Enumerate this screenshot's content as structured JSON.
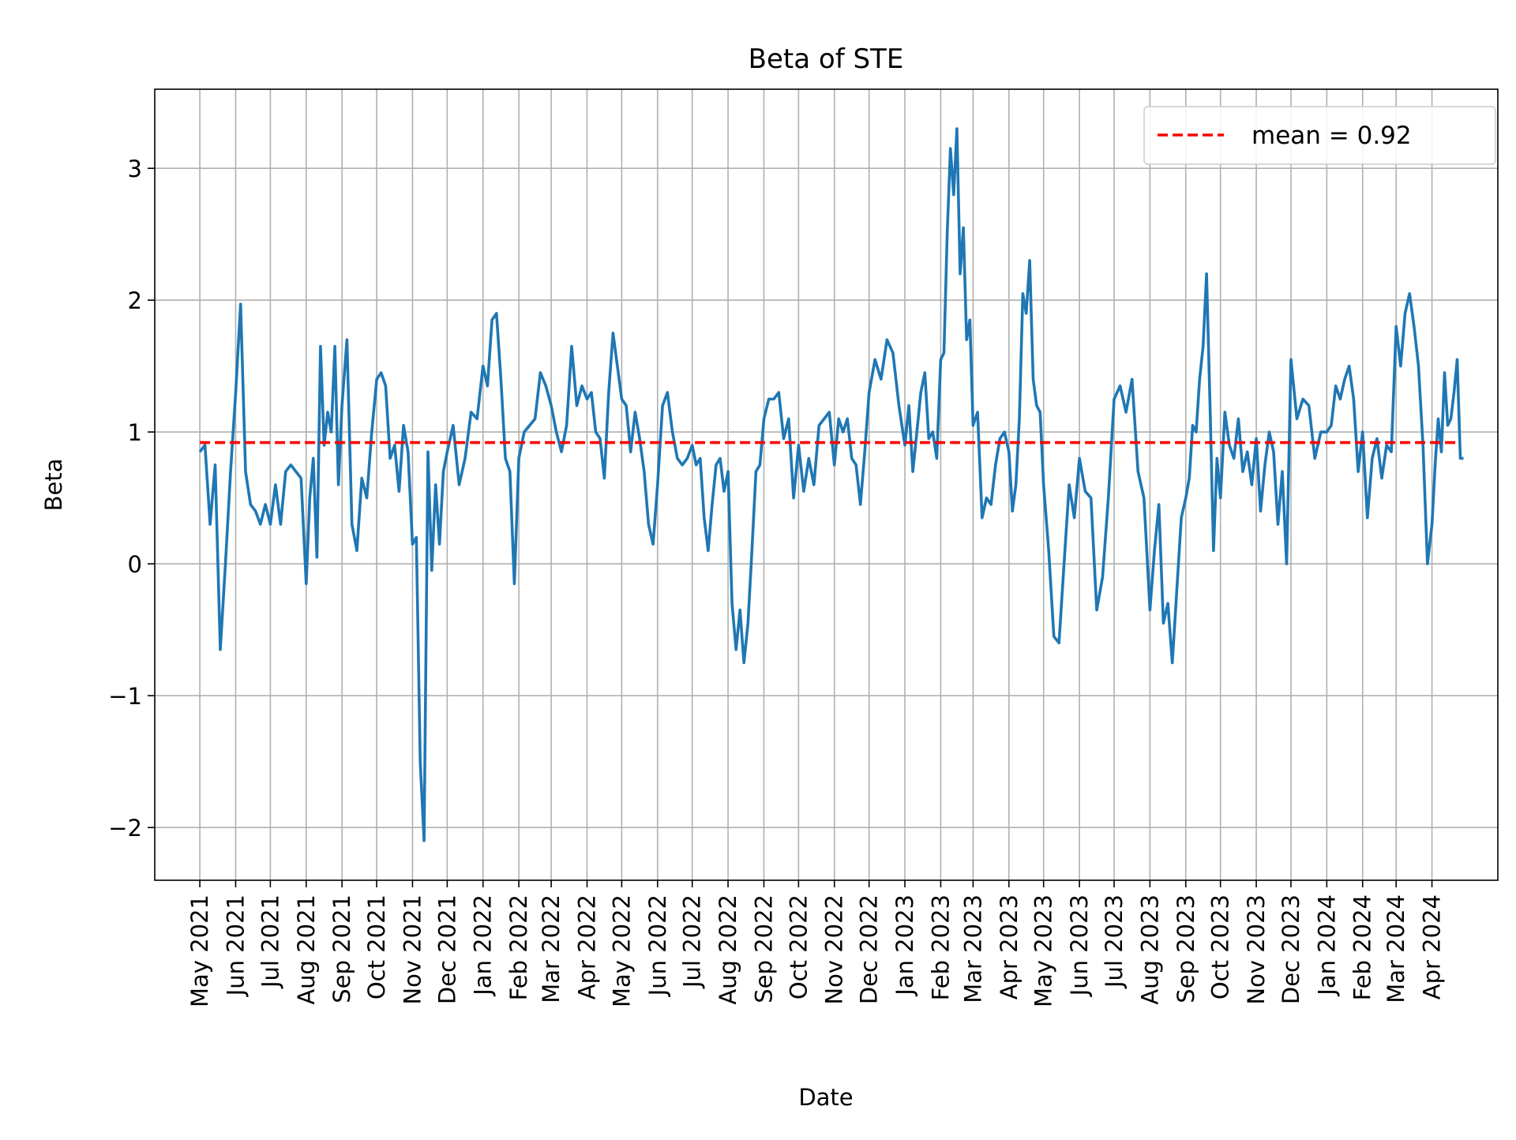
{
  "chart_data": {
    "type": "line",
    "title": "Beta of STE",
    "xlabel": "Date",
    "ylabel": "Beta",
    "ylim": [
      -2.4,
      3.6
    ],
    "yticks": [
      -2,
      -1,
      0,
      1,
      2,
      3
    ],
    "ytick_labels": [
      "−2",
      "−1",
      "0",
      "1",
      "2",
      "3"
    ],
    "xlim": [
      "2021-03-23",
      "2024-05-28"
    ],
    "grid": true,
    "legend_position": "top-right",
    "xtick_labels": [
      "May 2021",
      "Jun 2021",
      "Jul 2021",
      "Aug 2021",
      "Sep 2021",
      "Oct 2021",
      "Nov 2021",
      "Dec 2021",
      "Jan 2022",
      "Feb 2022",
      "Mar 2022",
      "Apr 2022",
      "May 2022",
      "Jun 2022",
      "Jul 2022",
      "Aug 2022",
      "Sep 2022",
      "Oct 2022",
      "Nov 2022",
      "Dec 2022",
      "Jan 2023",
      "Feb 2023",
      "Mar 2023",
      "Apr 2023",
      "May 2023",
      "Jun 2023",
      "Jul 2023",
      "Aug 2023",
      "Sep 2023",
      "Oct 2023",
      "Nov 2023",
      "Dec 2023",
      "Jan 2024",
      "Feb 2024",
      "Mar 2024",
      "Apr 2024"
    ],
    "xtick_dates": [
      "2021-05-01",
      "2021-06-01",
      "2021-07-01",
      "2021-08-01",
      "2021-09-01",
      "2021-10-01",
      "2021-11-01",
      "2021-12-01",
      "2022-01-01",
      "2022-02-01",
      "2022-03-01",
      "2022-04-01",
      "2022-05-01",
      "2022-06-01",
      "2022-07-01",
      "2022-08-01",
      "2022-09-01",
      "2022-10-01",
      "2022-11-01",
      "2022-12-01",
      "2023-01-01",
      "2023-02-01",
      "2023-03-01",
      "2023-04-01",
      "2023-05-01",
      "2023-06-01",
      "2023-07-01",
      "2023-08-01",
      "2023-09-01",
      "2023-10-01",
      "2023-11-01",
      "2023-12-01",
      "2024-01-01",
      "2024-02-01",
      "2024-03-01",
      "2024-04-01"
    ],
    "series": [
      {
        "color": "#1f77b4",
        "monthly_values": [
          {
            "month": "2021-05",
            "values": [
              0.85,
              0.9,
              0.3,
              0.75,
              -0.65,
              0.0,
              0.7
            ]
          },
          {
            "month": "2021-06",
            "values": [
              1.3,
              1.97,
              0.7,
              0.45,
              0.4,
              0.3,
              0.45
            ]
          },
          {
            "month": "2021-07",
            "values": [
              0.3,
              0.6,
              0.3,
              0.7,
              0.75,
              0.7,
              0.65
            ]
          },
          {
            "month": "2021-08",
            "values": [
              -0.15,
              0.5,
              0.8,
              0.05,
              1.65,
              0.9,
              1.15,
              1.0,
              1.65,
              0.6
            ]
          },
          {
            "month": "2021-09",
            "values": [
              1.2,
              1.7,
              0.3,
              0.1,
              0.65,
              0.5,
              1.0
            ]
          },
          {
            "month": "2021-10",
            "values": [
              1.4,
              1.45,
              1.35,
              0.8,
              0.9,
              0.55,
              1.05,
              0.85
            ]
          },
          {
            "month": "2021-11",
            "values": [
              0.15,
              0.2,
              -1.5,
              -2.1,
              0.85,
              -0.05,
              0.6,
              0.15,
              0.7
            ]
          },
          {
            "month": "2021-12",
            "values": [
              0.85,
              1.05,
              0.6,
              0.8,
              1.15,
              1.1
            ]
          },
          {
            "month": "2022-01",
            "values": [
              1.5,
              1.35,
              1.85,
              1.9,
              1.4,
              0.8,
              0.7,
              -0.15
            ]
          },
          {
            "month": "2022-02",
            "values": [
              0.8,
              1.0,
              1.05,
              1.1,
              1.45,
              1.35
            ]
          },
          {
            "month": "2022-03",
            "values": [
              1.2,
              1.0,
              0.85,
              1.05,
              1.65,
              1.2,
              1.35
            ]
          },
          {
            "month": "2022-04",
            "values": [
              1.25,
              1.3,
              1.0,
              0.95,
              0.65,
              1.3,
              1.75,
              1.5
            ]
          },
          {
            "month": "2022-05",
            "values": [
              1.25,
              1.2,
              0.85,
              1.15,
              0.95,
              0.7,
              0.3,
              0.15
            ]
          },
          {
            "month": "2022-06",
            "values": [
              0.6,
              1.2,
              1.3,
              1.0,
              0.8,
              0.75,
              0.8
            ]
          },
          {
            "month": "2022-07",
            "values": [
              0.9,
              0.75,
              0.8,
              0.35,
              0.1,
              0.45,
              0.75,
              0.8,
              0.55
            ]
          },
          {
            "month": "2022-08",
            "values": [
              0.7,
              -0.3,
              -0.65,
              -0.35,
              -0.75,
              -0.45,
              0.1,
              0.7,
              0.75
            ]
          },
          {
            "month": "2022-09",
            "values": [
              1.1,
              1.25,
              1.25,
              1.3,
              0.95,
              1.1,
              0.5
            ]
          },
          {
            "month": "2022-10",
            "values": [
              0.9,
              0.55,
              0.8,
              0.6,
              1.05,
              1.1,
              1.15
            ]
          },
          {
            "month": "2022-11",
            "values": [
              0.75,
              1.1,
              1.0,
              1.1,
              0.8,
              0.75,
              0.45,
              0.85
            ]
          },
          {
            "month": "2022-12",
            "values": [
              1.3,
              1.55,
              1.4,
              1.7,
              1.6,
              1.2
            ]
          },
          {
            "month": "2023-01",
            "values": [
              0.9,
              1.2,
              0.7,
              1.0,
              1.3,
              1.45,
              0.95,
              1.0,
              0.8
            ]
          },
          {
            "month": "2023-02",
            "values": [
              1.55,
              1.6,
              2.5,
              3.15,
              2.8,
              3.3,
              2.2,
              2.55,
              1.7,
              1.85
            ]
          },
          {
            "month": "2023-03",
            "values": [
              1.05,
              1.15,
              0.35,
              0.5,
              0.45,
              0.75,
              0.95,
              1.0
            ]
          },
          {
            "month": "2023-04",
            "values": [
              0.85,
              0.4,
              0.6,
              1.1,
              2.05,
              1.9,
              2.3,
              1.4,
              1.2,
              1.15
            ]
          },
          {
            "month": "2023-05",
            "values": [
              0.6,
              0.1,
              -0.55,
              -0.6,
              0.0,
              0.6,
              0.35
            ]
          },
          {
            "month": "2023-06",
            "values": [
              0.8,
              0.55,
              0.5,
              -0.35,
              -0.1,
              0.5
            ]
          },
          {
            "month": "2023-07",
            "values": [
              1.25,
              1.35,
              1.15,
              1.4,
              0.7,
              0.5
            ]
          },
          {
            "month": "2023-08",
            "values": [
              -0.35,
              0.1,
              0.45,
              -0.45,
              -0.3,
              -0.75,
              -0.2,
              0.35
            ]
          },
          {
            "month": "2023-09",
            "values": [
              0.5,
              0.65,
              1.05,
              1.0,
              1.4,
              1.65,
              2.2,
              1.2,
              0.1,
              0.8
            ]
          },
          {
            "month": "2023-10",
            "values": [
              0.5,
              1.15,
              0.9,
              0.8,
              1.1,
              0.7,
              0.85,
              0.6
            ]
          },
          {
            "month": "2023-11",
            "values": [
              0.95,
              0.4,
              0.75,
              1.0,
              0.85,
              0.3,
              0.7,
              0.0
            ]
          },
          {
            "month": "2023-12",
            "values": [
              1.55,
              1.1,
              1.25,
              1.2,
              0.8,
              1.0
            ]
          },
          {
            "month": "2024-01",
            "values": [
              1.0,
              1.05,
              1.35,
              1.25,
              1.4,
              1.5,
              1.25,
              0.7
            ]
          },
          {
            "month": "2024-02",
            "values": [
              1.0,
              0.35,
              0.8,
              0.95,
              0.65,
              0.9,
              0.85
            ]
          },
          {
            "month": "2024-03",
            "values": [
              1.8,
              1.5,
              1.9,
              2.05,
              1.8,
              1.5,
              0.9,
              0.0
            ]
          },
          {
            "month": "2024-04",
            "values": [
              0.3,
              0.75,
              1.1,
              0.85,
              1.45,
              1.05,
              1.1,
              1.3,
              1.55,
              0.8,
              0.8
            ]
          }
        ]
      }
    ],
    "mean_line": {
      "value": 0.92,
      "label": "mean = 0.92",
      "color": "#ff0000",
      "style": "dashed"
    }
  }
}
